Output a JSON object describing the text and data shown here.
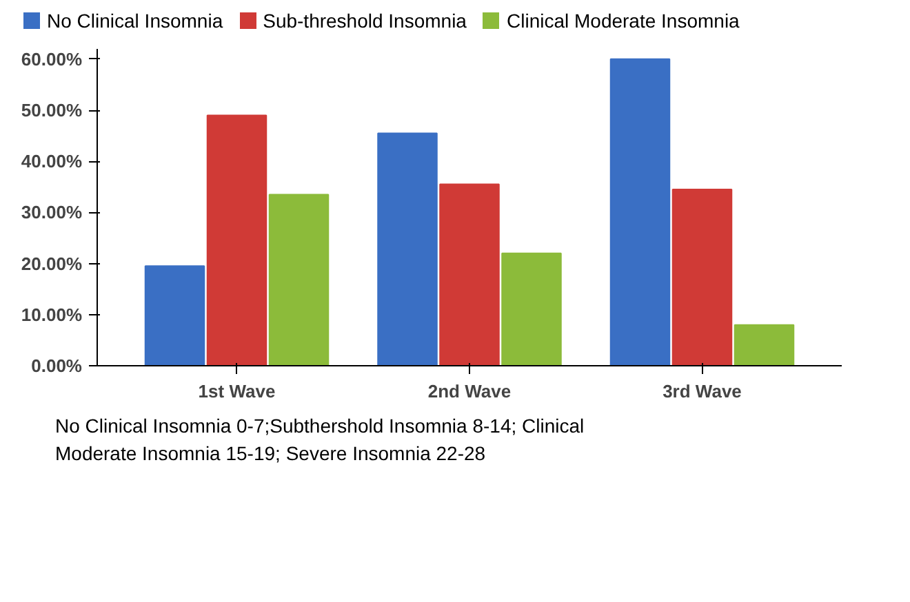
{
  "chart_data": {
    "type": "bar",
    "categories": [
      "1st Wave",
      "2nd Wave",
      "3rd Wave"
    ],
    "series": [
      {
        "name": "No Clinical Insomnia",
        "color": "#3a6fc4",
        "values": [
          19.5,
          45.5,
          60
        ]
      },
      {
        "name": "Sub-threshold Insomnia",
        "color": "#d03a36",
        "values": [
          49,
          35.5,
          34.5
        ]
      },
      {
        "name": "Clinical Moderate Insomnia",
        "color": "#8cbb3a",
        "values": [
          33.5,
          22,
          8
        ]
      }
    ],
    "ylim": [
      0,
      62
    ],
    "yticks": [
      {
        "value": 0,
        "label": "0.00%"
      },
      {
        "value": 10,
        "label": "10.00%"
      },
      {
        "value": 20,
        "label": "20.00%"
      },
      {
        "value": 30,
        "label": "30.00%"
      },
      {
        "value": 40,
        "label": "40.00%"
      },
      {
        "value": 50,
        "label": "50.00%"
      },
      {
        "value": 60,
        "label": "60.00%"
      }
    ],
    "grid": false,
    "legend": "top",
    "annotations": [
      "No Clinical Insomnia 0-7;Subthershold  Insomnia 8-14; Clinical\nModerate Insomnia 15-19; Severe Insomnia 22-28"
    ]
  }
}
